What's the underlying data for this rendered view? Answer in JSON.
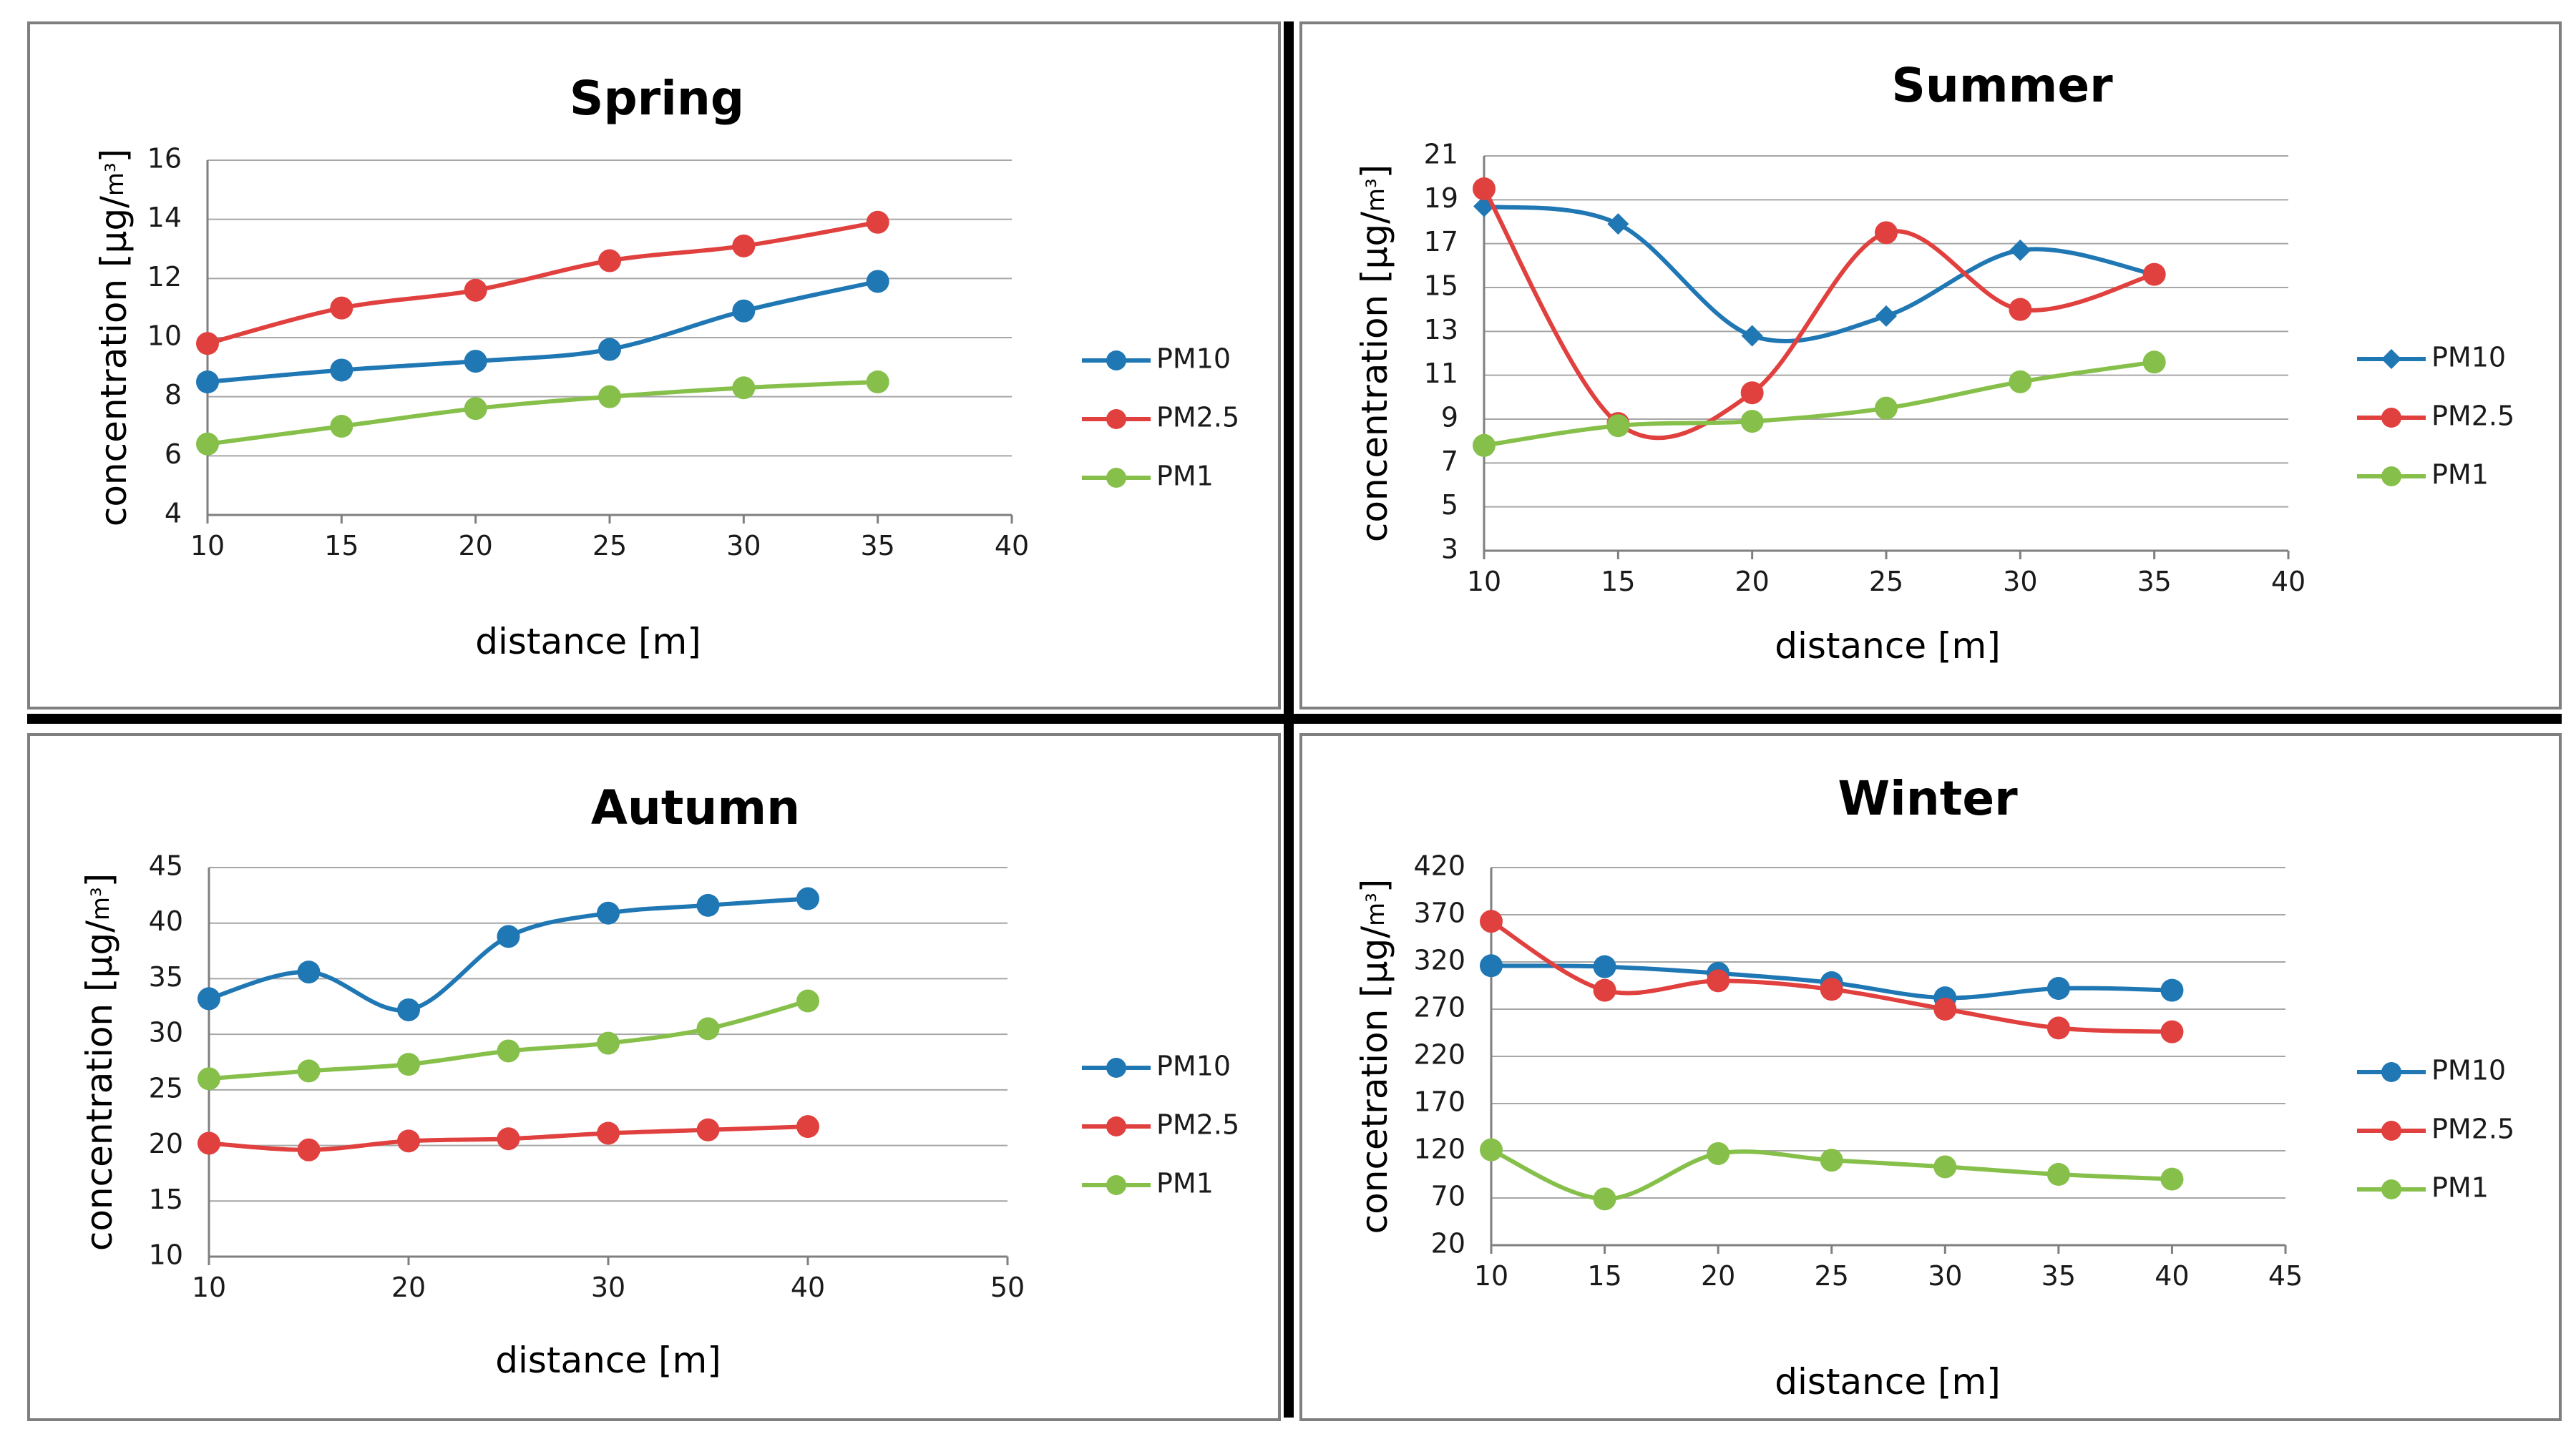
{
  "colors": {
    "PM10": "#1f77b4",
    "PM2.5": "#e0403e",
    "PM1": "#86c04a"
  },
  "chart_data": [
    {
      "type": "line",
      "title": "Spring",
      "xlabel": "distance [m]",
      "ylabel": "concentration [μg/",
      "ylabel_unit": "m³",
      "ylabel_close": "]",
      "x_ticks": [
        10,
        15,
        20,
        25,
        30,
        35,
        40
      ],
      "y_ticks": [
        4,
        6,
        8,
        10,
        12,
        14,
        16
      ],
      "xlim": [
        10,
        40
      ],
      "ylim": [
        4,
        16
      ],
      "grid": true,
      "legend": "right",
      "series": [
        {
          "name": "PM10",
          "marker": "circle",
          "x": [
            10,
            15,
            20,
            25,
            30,
            35
          ],
          "values": [
            8.5,
            8.9,
            9.2,
            9.6,
            10.9,
            11.9
          ]
        },
        {
          "name": "PM2.5",
          "marker": "circle",
          "x": [
            10,
            15,
            20,
            25,
            30,
            35
          ],
          "values": [
            9.8,
            11.0,
            11.6,
            12.6,
            13.1,
            13.9
          ]
        },
        {
          "name": "PM1",
          "marker": "circle",
          "x": [
            10,
            15,
            20,
            25,
            30,
            35
          ],
          "values": [
            6.4,
            7.0,
            7.6,
            8.0,
            8.3,
            8.5
          ]
        }
      ]
    },
    {
      "type": "line",
      "title": "Summer",
      "xlabel": "distance [m]",
      "ylabel": "concentration [μg/",
      "ylabel_unit": "m³",
      "ylabel_close": "]",
      "x_ticks": [
        10,
        15,
        20,
        25,
        30,
        35,
        40
      ],
      "y_ticks": [
        3,
        5,
        7,
        9,
        11,
        13,
        15,
        17,
        19,
        21
      ],
      "xlim": [
        10,
        40
      ],
      "ylim": [
        3,
        21
      ],
      "grid": true,
      "legend": "right",
      "series": [
        {
          "name": "PM10",
          "marker": "diamond",
          "x": [
            10,
            15,
            20,
            25,
            30,
            35
          ],
          "values": [
            18.7,
            17.9,
            12.8,
            13.7,
            16.7,
            15.6
          ]
        },
        {
          "name": "PM2.5",
          "marker": "circle",
          "x": [
            10,
            15,
            20,
            25,
            30,
            35
          ],
          "values": [
            19.5,
            8.8,
            10.2,
            17.5,
            14.0,
            15.6
          ]
        },
        {
          "name": "PM1",
          "marker": "circle",
          "x": [
            10,
            15,
            20,
            25,
            30,
            35
          ],
          "values": [
            7.8,
            8.7,
            8.9,
            9.5,
            10.7,
            11.6
          ]
        }
      ]
    },
    {
      "type": "line",
      "title": "Autumn",
      "xlabel": "distance [m]",
      "ylabel": "concentration [μg/",
      "ylabel_unit": "m³",
      "ylabel_close": "]",
      "x_ticks": [
        10,
        20,
        30,
        40,
        50
      ],
      "y_ticks": [
        10,
        15,
        20,
        25,
        30,
        35,
        40,
        45
      ],
      "xlim": [
        10,
        50
      ],
      "ylim": [
        10,
        45
      ],
      "grid": true,
      "legend": "right",
      "series": [
        {
          "name": "PM10",
          "marker": "circle",
          "x": [
            10,
            15,
            20,
            25,
            30,
            35,
            40
          ],
          "values": [
            33.2,
            35.6,
            32.2,
            38.8,
            40.9,
            41.6,
            42.2
          ]
        },
        {
          "name": "PM2.5",
          "marker": "circle",
          "x": [
            10,
            15,
            20,
            25,
            30,
            35,
            40
          ],
          "values": [
            20.2,
            19.6,
            20.4,
            20.6,
            21.1,
            21.4,
            21.7
          ]
        },
        {
          "name": "PM1",
          "marker": "circle",
          "x": [
            10,
            15,
            20,
            25,
            30,
            35,
            40
          ],
          "values": [
            26.0,
            26.7,
            27.3,
            28.5,
            29.2,
            30.5,
            33.0
          ]
        }
      ]
    },
    {
      "type": "line",
      "title": "Winter",
      "xlabel": "distance [m]",
      "ylabel": "concetration [μg/",
      "ylabel_unit": "m³",
      "ylabel_close": "]",
      "x_ticks": [
        10,
        15,
        20,
        25,
        30,
        35,
        40,
        45
      ],
      "y_ticks": [
        20,
        70,
        120,
        170,
        220,
        270,
        320,
        370,
        420
      ],
      "xlim": [
        10,
        45
      ],
      "ylim": [
        20,
        420
      ],
      "grid": true,
      "legend": "right",
      "series": [
        {
          "name": "PM10",
          "marker": "circle",
          "x": [
            10,
            15,
            20,
            25,
            30,
            35,
            40
          ],
          "values": [
            316,
            315,
            308,
            298,
            282,
            292,
            290
          ]
        },
        {
          "name": "PM2.5",
          "marker": "circle",
          "x": [
            10,
            15,
            20,
            25,
            30,
            35,
            40
          ],
          "values": [
            363,
            290,
            300,
            291,
            270,
            250,
            246
          ]
        },
        {
          "name": "PM1",
          "marker": "circle",
          "x": [
            10,
            15,
            20,
            25,
            30,
            35,
            40
          ],
          "values": [
            121,
            69,
            117,
            110,
            103,
            95,
            90
          ]
        }
      ]
    }
  ]
}
